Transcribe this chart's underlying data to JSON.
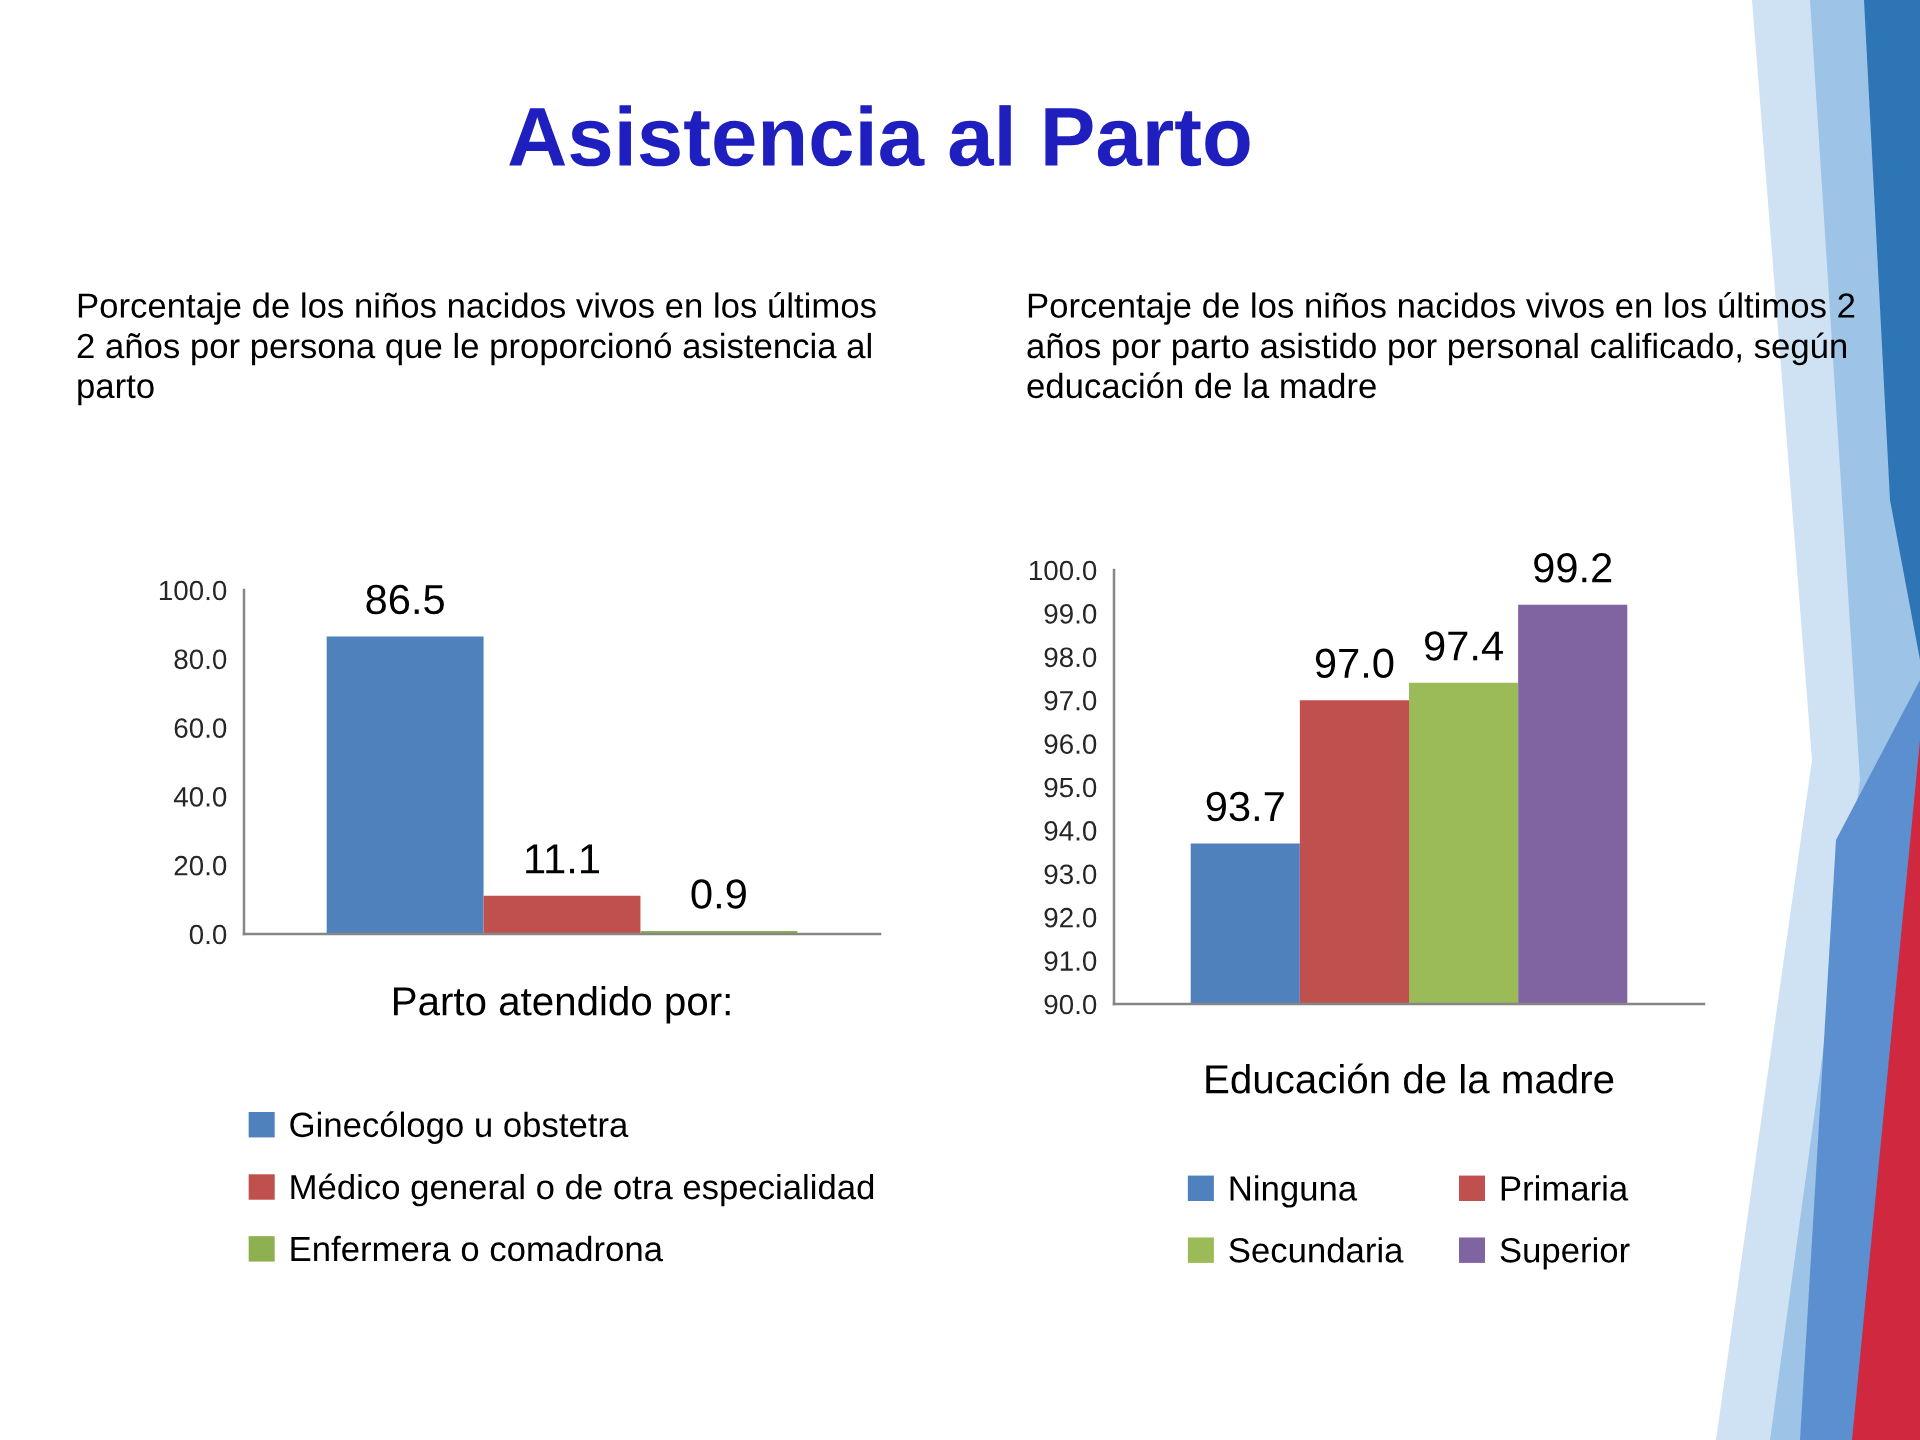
{
  "chart_data": [
    {
      "type": "bar",
      "title": "Asistencia al Parto",
      "subtitle": "Porcentaje de los niños nacidos vivos en los últimos 2 años por persona que le proporcionó asistencia al parto",
      "xlabel": "Parto atendido por:",
      "categories": [
        null
      ],
      "series": [
        {
          "name": "Ginecólogo u obstetra",
          "color": "#4f81bd",
          "values": [
            86.5
          ],
          "value_labels": [
            "86.5"
          ]
        },
        {
          "name": "Médico general o de otra especialidad",
          "color": "#c0504d",
          "values": [
            11.1
          ],
          "value_labels": [
            "11.1"
          ]
        },
        {
          "name": "Enfermera o comadrona",
          "color": "#8db050",
          "values": [
            0.9
          ],
          "value_labels": [
            "0.9"
          ]
        }
      ],
      "ylim": [
        0,
        100
      ],
      "yticks": [
        {
          "value": 0,
          "label": "0.0"
        },
        {
          "value": 20,
          "label": "20.0"
        },
        {
          "value": 40,
          "label": "40.0"
        },
        {
          "value": 60,
          "label": "60.0"
        },
        {
          "value": 80,
          "label": "80.0"
        },
        {
          "value": 100,
          "label": "100.0"
        }
      ],
      "tick_labels": "y",
      "grid": false,
      "legend": "bottom"
    },
    {
      "type": "bar",
      "subtitle": "Porcentaje de los niños nacidos vivos en los últimos 2 años por parto asistido por personal calificado, según educación de la madre",
      "xlabel": "Educación de la madre",
      "categories": [
        null
      ],
      "series": [
        {
          "name": "Ninguna",
          "color": "#4f81bd",
          "values": [
            93.7
          ],
          "value_labels": [
            "93.7"
          ]
        },
        {
          "name": "Primaria",
          "color": "#c0504d",
          "values": [
            97.0
          ],
          "value_labels": [
            "97.0"
          ]
        },
        {
          "name": "Secundaria",
          "color": "#9bbb59",
          "values": [
            97.4
          ],
          "value_labels": [
            "97.4"
          ]
        },
        {
          "name": "Superior",
          "color": "#8064a2",
          "values": [
            99.2
          ],
          "value_labels": [
            "99.2"
          ]
        }
      ],
      "ylim": [
        90,
        100
      ],
      "yticks": [
        {
          "value": 90,
          "label": "90.0"
        },
        {
          "value": 91,
          "label": "91.0"
        },
        {
          "value": 92,
          "label": "92.0"
        },
        {
          "value": 93,
          "label": "93.0"
        },
        {
          "value": 94,
          "label": "94.0"
        },
        {
          "value": 95,
          "label": "95.0"
        },
        {
          "value": 96,
          "label": "96.0"
        },
        {
          "value": 97,
          "label": "97.0"
        },
        {
          "value": 98,
          "label": "98.0"
        },
        {
          "value": 99,
          "label": "99.0"
        },
        {
          "value": 100,
          "label": "100.0"
        }
      ],
      "tick_labels": "y",
      "grid": false,
      "legend": "bottom"
    }
  ]
}
